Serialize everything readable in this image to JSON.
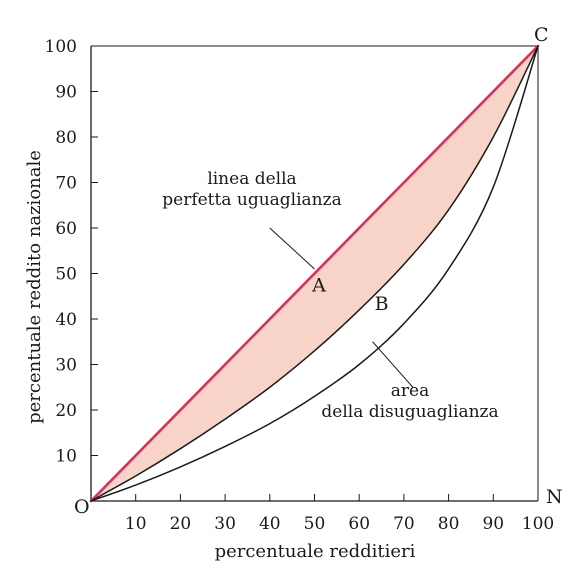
{
  "chart_data": {
    "type": "line",
    "xlabel": "percentuale redditieri",
    "ylabel": "percentuale reddito nazionale",
    "xlim": [
      0,
      100
    ],
    "ylim": [
      0,
      100
    ],
    "x_ticks": [
      "10",
      "20",
      "30",
      "40",
      "50",
      "60",
      "70",
      "80",
      "90",
      "100"
    ],
    "y_ticks": [
      "10",
      "20",
      "30",
      "40",
      "50",
      "60",
      "70",
      "80",
      "90",
      "100"
    ],
    "corner_labels": {
      "origin": "O",
      "top_right": "C",
      "bottom_right": "N"
    },
    "series": [
      {
        "key": "equality",
        "color": "#d6325a",
        "x": [
          0,
          100
        ],
        "y": [
          0,
          100
        ]
      },
      {
        "key": "curve_A",
        "color": "#1a1a1a",
        "x": [
          0,
          10,
          20,
          30,
          40,
          50,
          60,
          70,
          80,
          90,
          100
        ],
        "y": [
          0,
          5.5,
          11.5,
          18,
          25,
          33,
          42,
          52,
          64,
          80,
          100
        ]
      },
      {
        "key": "curve_B",
        "color": "#1a1a1a",
        "x": [
          0,
          10,
          20,
          30,
          40,
          50,
          60,
          70,
          80,
          90,
          100
        ],
        "y": [
          0,
          3.5,
          7.5,
          12,
          17,
          23,
          30,
          39,
          51,
          69,
          100
        ]
      }
    ],
    "shaded_area": {
      "between": [
        "equality",
        "curve_A"
      ],
      "color": "#f8d3c7"
    },
    "point_labels": [
      {
        "text": "A",
        "x": 51,
        "y": 46
      },
      {
        "text": "B",
        "x": 65,
        "y": 42
      }
    ],
    "annotations": [
      {
        "lines": [
          "linea della",
          "perfetta uguaglianza"
        ],
        "line_from": [
          40,
          60
        ],
        "line_to": [
          50,
          51
        ]
      },
      {
        "lines": [
          "area",
          "della disuguaglianza"
        ],
        "line_from": [
          63,
          35
        ],
        "line_to": [
          72,
          25
        ]
      }
    ]
  }
}
